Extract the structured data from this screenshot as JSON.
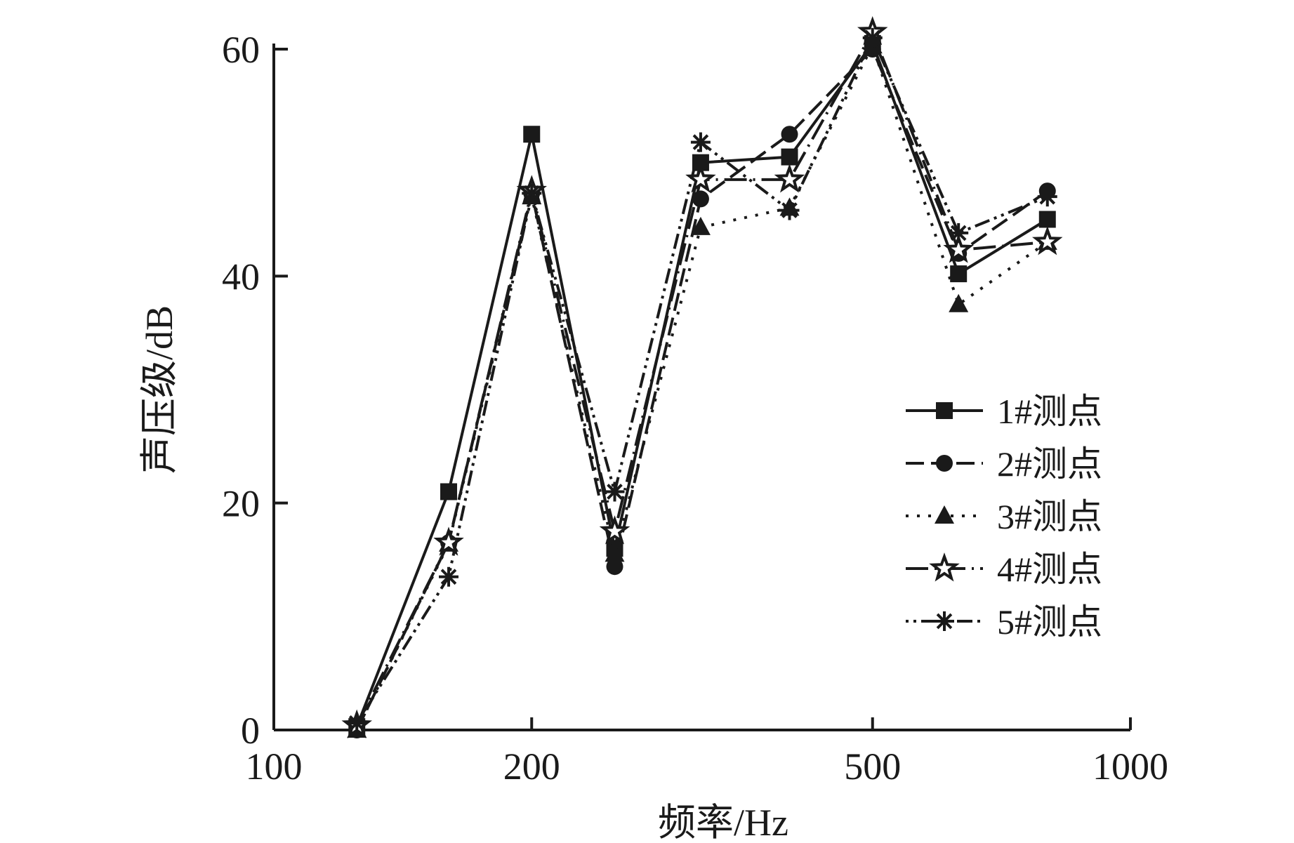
{
  "chart_data": {
    "type": "line",
    "xlabel": "频率/Hz",
    "ylabel": "声压级/dB",
    "x_scale": "log",
    "xlim": [
      100,
      1000
    ],
    "ylim": [
      0,
      60
    ],
    "x_ticks": [
      100,
      200,
      500,
      1000
    ],
    "x_tick_labels": [
      "100",
      "200",
      "500",
      "1000"
    ],
    "y_ticks": [
      0,
      20,
      40,
      60
    ],
    "y_tick_labels": [
      "0",
      "20",
      "40",
      "60"
    ],
    "x": [
      125,
      160,
      200,
      250,
      315,
      400,
      500,
      630,
      800
    ],
    "grid": false,
    "legend_position": "right",
    "series": [
      {
        "name": "1#测点",
        "marker": "square",
        "dash": "",
        "values": [
          0.3,
          21,
          52.5,
          16,
          50,
          50.5,
          60.5,
          40.2,
          45
        ]
      },
      {
        "name": "2#测点",
        "marker": "circle",
        "dash": "26,10",
        "values": [
          0,
          16.5,
          47.3,
          14.4,
          46.8,
          52.5,
          60,
          42,
          47.5
        ]
      },
      {
        "name": "3#测点",
        "marker": "triangle",
        "dash": "4,12",
        "values": [
          0,
          16.4,
          47,
          15.5,
          44.3,
          46,
          60.3,
          37.5,
          43
        ]
      },
      {
        "name": "4#测点",
        "marker": "star",
        "dash": "32,9,3,9",
        "values": [
          0.4,
          16.5,
          47.5,
          17.5,
          48.5,
          48.5,
          61.5,
          42.3,
          43
        ]
      },
      {
        "name": "5#测点",
        "marker": "asterisk",
        "dash": "4,7,4,7,22,7",
        "values": [
          0.6,
          13.5,
          47.3,
          21,
          51.8,
          45.8,
          61,
          43.8,
          47
        ]
      }
    ]
  }
}
